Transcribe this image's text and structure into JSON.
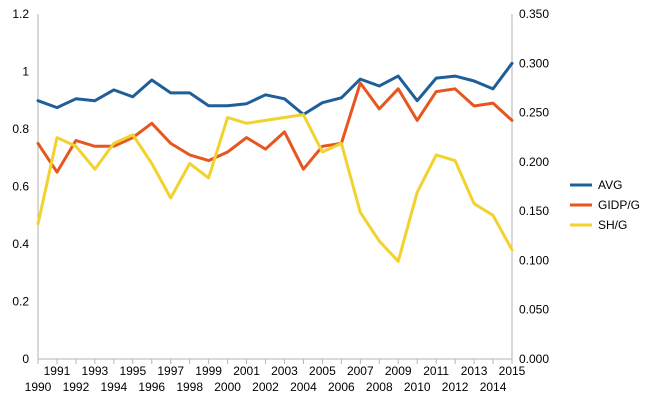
{
  "chart_data": {
    "type": "line",
    "title": "",
    "x": [
      1990,
      1991,
      1992,
      1993,
      1994,
      1995,
      1996,
      1997,
      1998,
      1999,
      2000,
      2001,
      2002,
      2003,
      2004,
      2005,
      2006,
      2007,
      2008,
      2009,
      2010,
      2011,
      2012,
      2013,
      2014,
      2015
    ],
    "x_labels": [
      "1990",
      "1991",
      "1992",
      "1993",
      "1994",
      "1995",
      "1996",
      "1997",
      "1998",
      "1999",
      "2000",
      "2001",
      "2002",
      "2003",
      "2004",
      "2005",
      "2006",
      "2007",
      "2008",
      "2009",
      "2010",
      "2011",
      "2012",
      "2013",
      "2014",
      "2015"
    ],
    "y_left": {
      "min": 0,
      "max": 1.2,
      "ticks": [
        "0",
        "0.2",
        "0.4",
        "0.6",
        "0.8",
        "1",
        "1.2"
      ]
    },
    "y_right": {
      "min": 0,
      "max": 0.35,
      "ticks": [
        "0.000",
        "0.050",
        "0.100",
        "0.150",
        "0.200",
        "0.250",
        "0.300",
        "0.350"
      ]
    },
    "grid": false,
    "legend_position": "right",
    "series": [
      {
        "name": "AVG",
        "axis": "right",
        "color": "#1f5f99",
        "values": [
          0.262,
          0.255,
          0.264,
          0.262,
          0.273,
          0.266,
          0.283,
          0.27,
          0.27,
          0.257,
          0.257,
          0.259,
          0.268,
          0.264,
          0.248,
          0.26,
          0.265,
          0.284,
          0.277,
          0.287,
          0.262,
          0.285,
          0.287,
          0.282,
          0.274,
          0.3
        ]
      },
      {
        "name": "GIDP/G",
        "axis": "left",
        "color": "#e8561f",
        "values": [
          0.75,
          0.65,
          0.76,
          0.74,
          0.74,
          0.77,
          0.82,
          0.75,
          0.71,
          0.69,
          0.72,
          0.77,
          0.73,
          0.79,
          0.66,
          0.74,
          0.75,
          0.96,
          0.87,
          0.94,
          0.83,
          0.93,
          0.94,
          0.88,
          0.89,
          0.83
        ]
      },
      {
        "name": "SH/G",
        "axis": "left",
        "color": "#f2d22e",
        "values": [
          0.47,
          0.77,
          0.74,
          0.66,
          0.75,
          0.78,
          0.68,
          0.56,
          0.68,
          0.63,
          0.84,
          0.82,
          0.83,
          0.84,
          0.85,
          0.72,
          0.75,
          0.51,
          0.41,
          0.34,
          0.58,
          0.71,
          0.69,
          0.54,
          0.5,
          0.38
        ]
      }
    ]
  }
}
